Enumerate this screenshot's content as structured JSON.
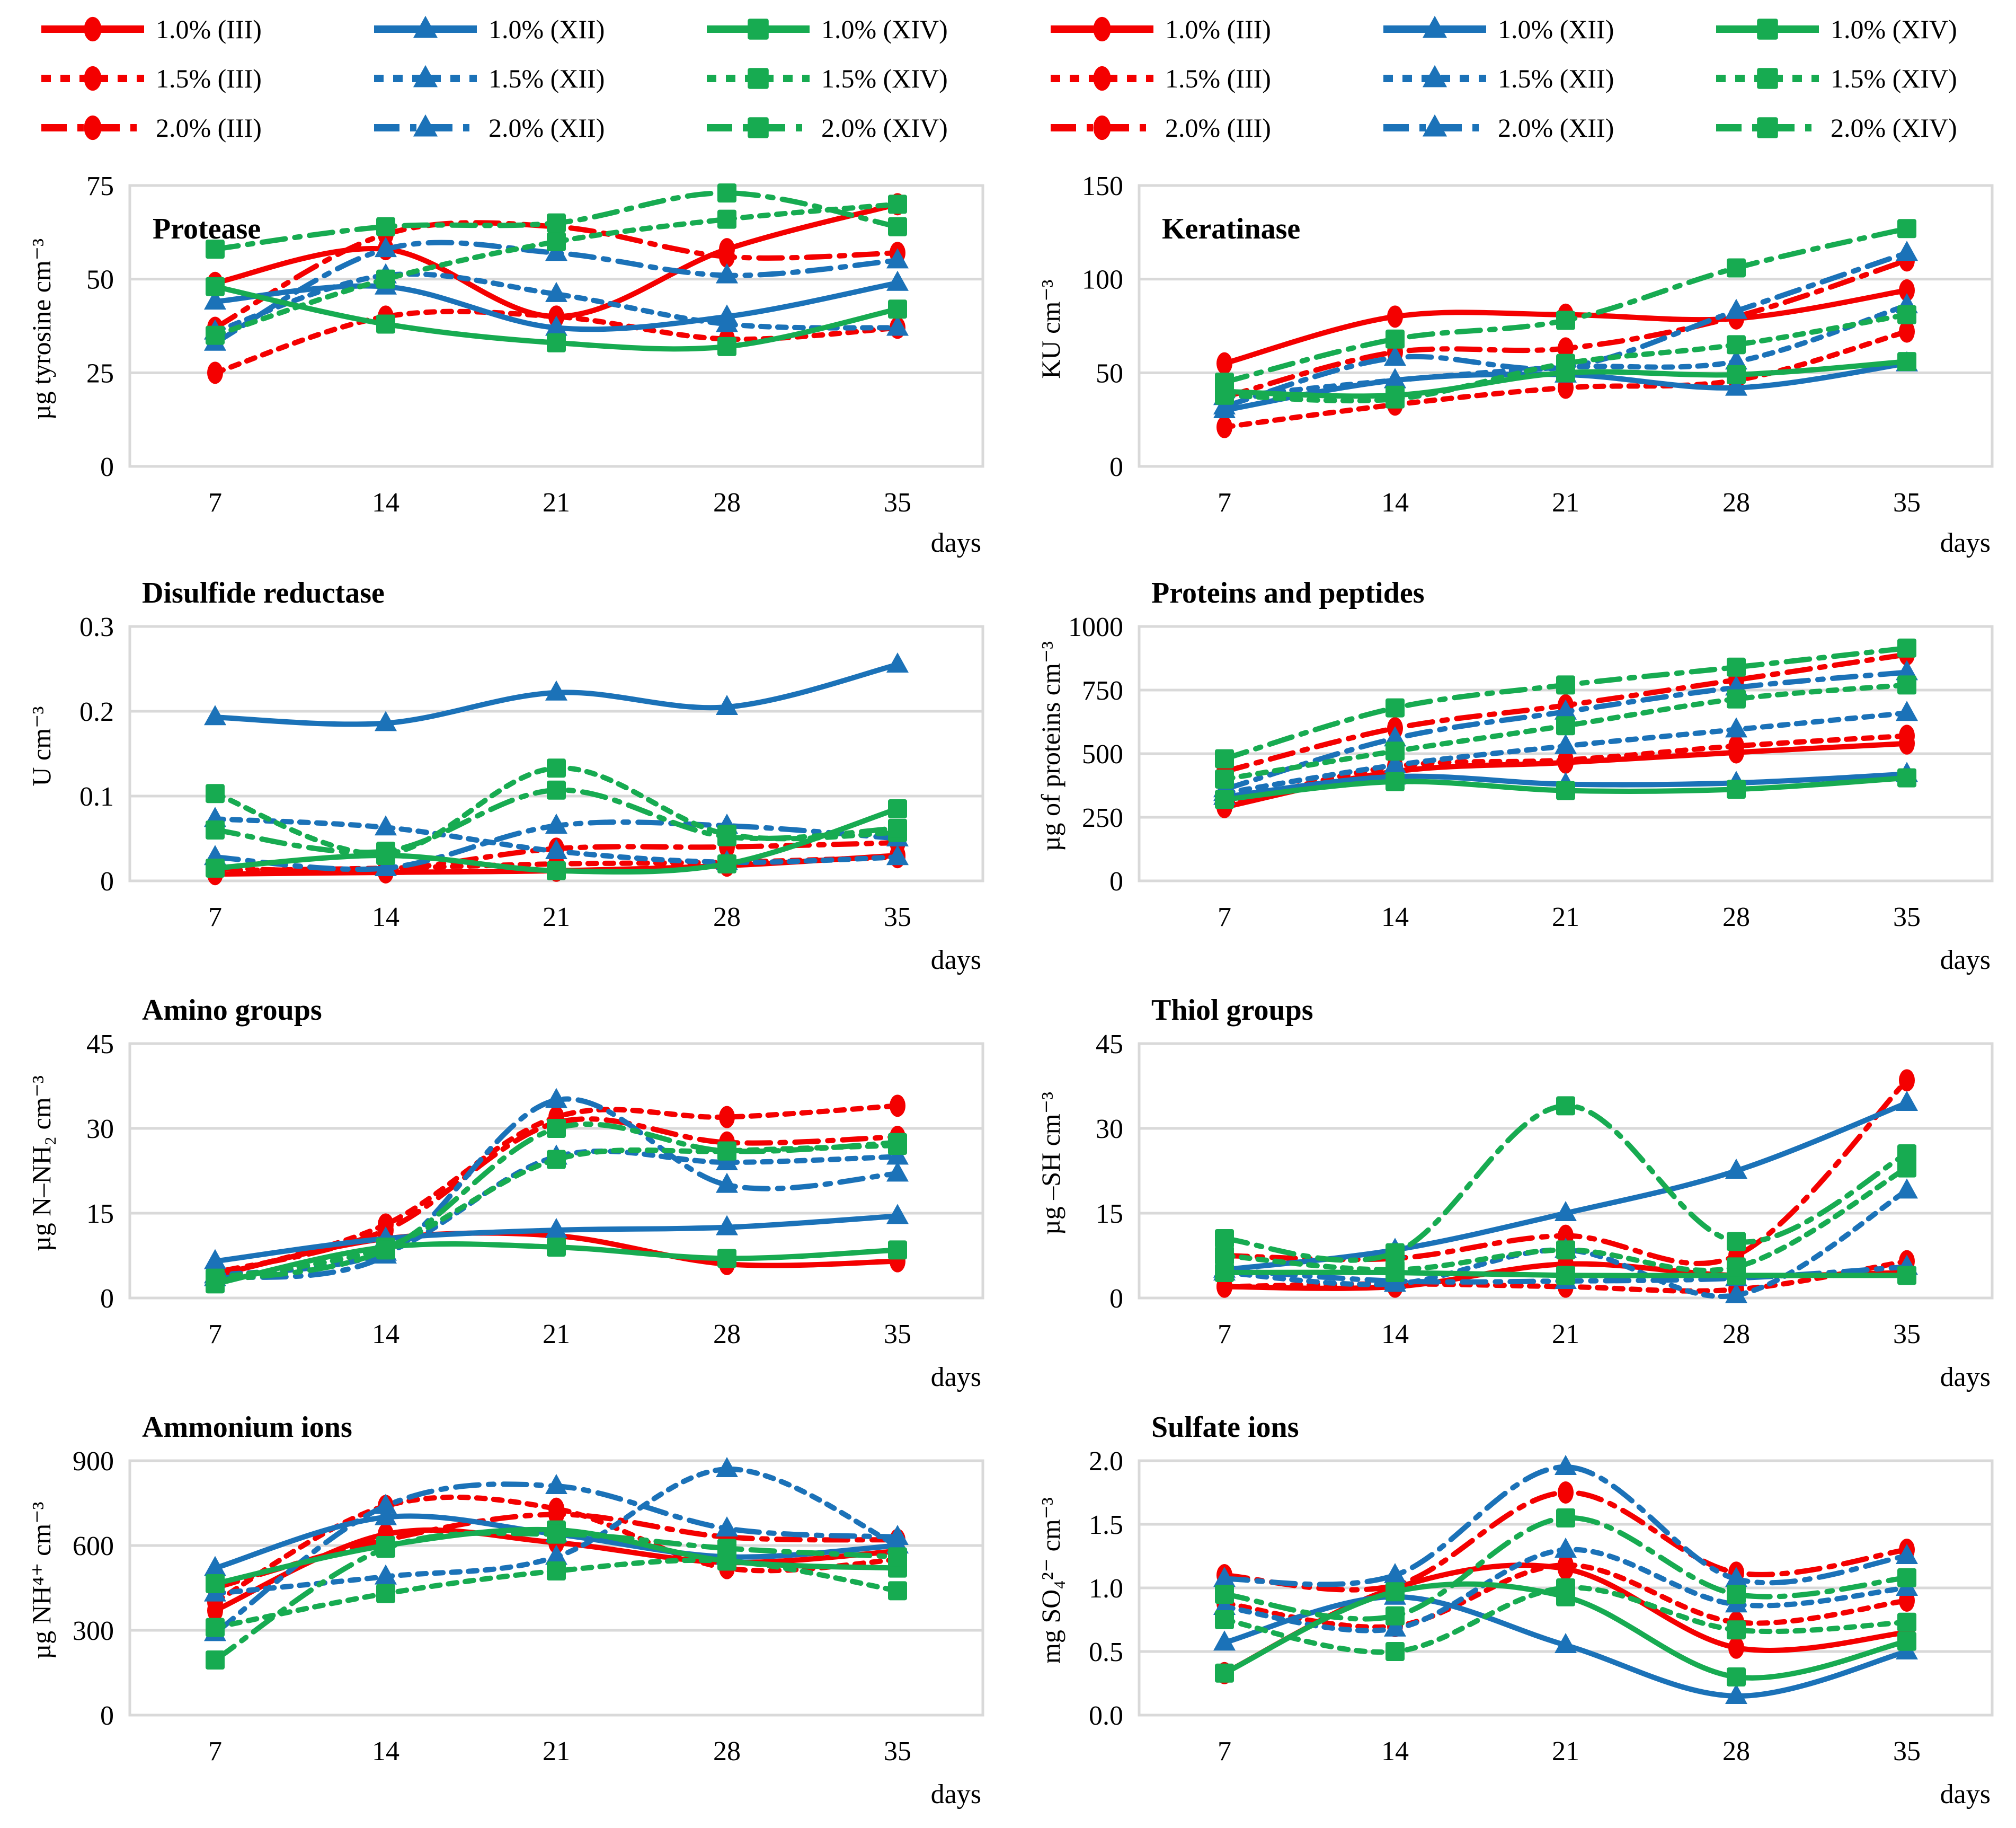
{
  "page": {
    "days_label": "days"
  },
  "colors": {
    "III": "#F40000",
    "XII": "#1B72B8",
    "XIV": "#17AB51",
    "grid": "#D9D9D9",
    "text": "#000000"
  },
  "x_labels": [
    "7",
    "14",
    "21",
    "28",
    "35"
  ],
  "series_defs": [
    {
      "id": "III-1.0",
      "label": "1.0% (III)",
      "strain": "III",
      "marker": "circle",
      "dash": "solid"
    },
    {
      "id": "XII-1.0",
      "label": "1.0% (XII)",
      "strain": "XII",
      "marker": "triangle",
      "dash": "solid"
    },
    {
      "id": "XIV-1.0",
      "label": "1.0% (XIV)",
      "strain": "XIV",
      "marker": "square",
      "dash": "solid"
    },
    {
      "id": "III-1.5",
      "label": "1.5% (III)",
      "strain": "III",
      "marker": "circle",
      "dash": "dashed"
    },
    {
      "id": "XII-1.5",
      "label": "1.5% (XII)",
      "strain": "XII",
      "marker": "triangle",
      "dash": "dashed"
    },
    {
      "id": "XIV-1.5",
      "label": "1.5% (XIV)",
      "strain": "XIV",
      "marker": "square",
      "dash": "dashed"
    },
    {
      "id": "III-2.0",
      "label": "2.0% (III)",
      "strain": "III",
      "marker": "circle",
      "dash": "dashdot"
    },
    {
      "id": "XII-2.0",
      "label": "2.0% (XII)",
      "strain": "XII",
      "marker": "triangle",
      "dash": "dashdot"
    },
    {
      "id": "XIV-2.0",
      "label": "2.0% (XIV)",
      "strain": "XIV",
      "marker": "square",
      "dash": "dashdot"
    }
  ],
  "chart_data": [
    {
      "type": "line",
      "title": "Protease",
      "ylabel": "µg tyrosine cm⁻³",
      "x": [
        7,
        14,
        21,
        28,
        35
      ],
      "xlabel": "days",
      "ylim": [
        0,
        75
      ],
      "yticks": [
        0,
        25,
        50,
        75
      ],
      "ytick_labels": [
        "0",
        "25",
        "50",
        "75"
      ],
      "title_inside": true,
      "grid": true,
      "legend_position": "top",
      "series": [
        {
          "id": "III-1.0",
          "name": "1.0% (III)",
          "values": [
            49,
            58,
            40,
            58,
            70
          ]
        },
        {
          "id": "III-1.5",
          "name": "1.5% (III)",
          "values": [
            25,
            40,
            40,
            34,
            37
          ]
        },
        {
          "id": "III-2.0",
          "name": "2.0% (III)",
          "values": [
            37,
            62,
            64,
            56,
            57
          ]
        },
        {
          "id": "XII-1.0",
          "name": "1.0% (XII)",
          "values": [
            44,
            48,
            37,
            40,
            49
          ]
        },
        {
          "id": "XII-1.5",
          "name": "1.5% (XII)",
          "values": [
            36,
            51,
            46,
            38,
            37
          ]
        },
        {
          "id": "XII-2.0",
          "name": "2.0% (XII)",
          "values": [
            33,
            58,
            57,
            51,
            55
          ]
        },
        {
          "id": "XIV-1.0",
          "name": "1.0% (XIV)",
          "values": [
            48,
            38,
            33,
            32,
            42
          ]
        },
        {
          "id": "XIV-1.5",
          "name": "1.5% (XIV)",
          "values": [
            35,
            50,
            60,
            66,
            70
          ]
        },
        {
          "id": "XIV-2.0",
          "name": "2.0% (XIV)",
          "values": [
            58,
            64,
            65,
            73,
            64
          ]
        }
      ]
    },
    {
      "type": "line",
      "title": "Keratinase",
      "ylabel": "KU cm⁻³",
      "x": [
        7,
        14,
        21,
        28,
        35
      ],
      "xlabel": "days",
      "ylim": [
        0,
        150
      ],
      "yticks": [
        0,
        50,
        100,
        150
      ],
      "ytick_labels": [
        "0",
        "50",
        "100",
        "150"
      ],
      "title_inside": true,
      "grid": true,
      "series": [
        {
          "id": "III-1.0",
          "name": "1.0% (III)",
          "values": [
            55,
            80,
            81,
            79,
            94
          ]
        },
        {
          "id": "III-1.5",
          "name": "1.5% (III)",
          "values": [
            21,
            33,
            42,
            46,
            72
          ]
        },
        {
          "id": "III-2.0",
          "name": "2.0% (III)",
          "values": [
            37,
            61,
            63,
            80,
            110
          ]
        },
        {
          "id": "XII-1.0",
          "name": "1.0% (XII)",
          "values": [
            30,
            46,
            49,
            42,
            55
          ]
        },
        {
          "id": "XII-1.5",
          "name": "1.5% (XII)",
          "values": [
            37,
            46,
            53,
            56,
            86
          ]
        },
        {
          "id": "XII-2.0",
          "name": "2.0% (XII)",
          "values": [
            32,
            58,
            53,
            83,
            114
          ]
        },
        {
          "id": "XIV-1.0",
          "name": "1.0% (XIV)",
          "values": [
            40,
            38,
            50,
            49,
            56
          ]
        },
        {
          "id": "XIV-1.5",
          "name": "1.5% (XIV)",
          "values": [
            38,
            36,
            55,
            65,
            81
          ]
        },
        {
          "id": "XIV-2.0",
          "name": "2.0% (XIV)",
          "values": [
            45,
            68,
            78,
            106,
            127
          ]
        }
      ]
    },
    {
      "type": "line",
      "title": "Disulfide reductase",
      "ylabel": "U cm⁻³",
      "x": [
        7,
        14,
        21,
        28,
        35
      ],
      "xlabel": "days",
      "ylim": [
        0,
        0.3
      ],
      "yticks": [
        0,
        0.1,
        0.2,
        0.3
      ],
      "ytick_labels": [
        "0",
        "0.1",
        "0.2",
        "0.3"
      ],
      "title_inside": false,
      "grid": true,
      "series": [
        {
          "id": "III-1.0",
          "name": "1.0% (III)",
          "values": [
            0.008,
            0.01,
            0.012,
            0.018,
            0.03
          ]
        },
        {
          "id": "III-1.5",
          "name": "1.5% (III)",
          "values": [
            0.012,
            0.015,
            0.02,
            0.022,
            0.028
          ]
        },
        {
          "id": "III-2.0",
          "name": "2.0% (III)",
          "values": [
            0.015,
            0.013,
            0.038,
            0.04,
            0.045
          ]
        },
        {
          "id": "XII-1.0",
          "name": "1.0% (XII)",
          "values": [
            0.193,
            0.186,
            0.222,
            0.205,
            0.255
          ]
        },
        {
          "id": "XII-1.5",
          "name": "1.5% (XII)",
          "values": [
            0.073,
            0.063,
            0.035,
            0.022,
            0.028
          ]
        },
        {
          "id": "XII-2.0",
          "name": "2.0% (XII)",
          "values": [
            0.028,
            0.015,
            0.065,
            0.065,
            0.05
          ]
        },
        {
          "id": "XIV-1.0",
          "name": "1.0% (XIV)",
          "values": [
            0.015,
            0.03,
            0.012,
            0.02,
            0.085
          ]
        },
        {
          "id": "XIV-1.5",
          "name": "1.5% (XIV)",
          "values": [
            0.103,
            0.032,
            0.133,
            0.055,
            0.057
          ]
        },
        {
          "id": "XIV-2.0",
          "name": "2.0% (XIV)",
          "values": [
            0.06,
            0.035,
            0.107,
            0.052,
            0.062
          ]
        }
      ]
    },
    {
      "type": "line",
      "title": "Proteins and peptides",
      "ylabel": "µg of proteins cm⁻³",
      "x": [
        7,
        14,
        21,
        28,
        35
      ],
      "xlabel": "days",
      "ylim": [
        0,
        1000
      ],
      "yticks": [
        0,
        250,
        500,
        750,
        1000
      ],
      "ytick_labels": [
        "0",
        "250",
        "500",
        "750",
        "1000"
      ],
      "title_inside": false,
      "grid": true,
      "series": [
        {
          "id": "III-1.0",
          "name": "1.0% (III)",
          "values": [
            290,
            430,
            465,
            505,
            540
          ]
        },
        {
          "id": "III-1.5",
          "name": "1.5% (III)",
          "values": [
            300,
            450,
            475,
            530,
            570
          ]
        },
        {
          "id": "III-2.0",
          "name": "2.0% (III)",
          "values": [
            430,
            600,
            690,
            790,
            890
          ]
        },
        {
          "id": "XII-1.0",
          "name": "1.0% (XII)",
          "values": [
            330,
            410,
            380,
            385,
            420
          ]
        },
        {
          "id": "XII-1.5",
          "name": "1.5% (XII)",
          "values": [
            345,
            455,
            530,
            595,
            660
          ]
        },
        {
          "id": "XII-2.0",
          "name": "2.0% (XII)",
          "values": [
            360,
            560,
            665,
            760,
            820
          ]
        },
        {
          "id": "XIV-1.0",
          "name": "1.0% (XIV)",
          "values": [
            320,
            390,
            355,
            360,
            405
          ]
        },
        {
          "id": "XIV-1.5",
          "name": "1.5% (XIV)",
          "values": [
            400,
            510,
            610,
            715,
            770
          ]
        },
        {
          "id": "XIV-2.0",
          "name": "2.0% (XIV)",
          "values": [
            480,
            680,
            770,
            840,
            915
          ]
        }
      ]
    },
    {
      "type": "line",
      "title": "Amino groups",
      "ylabel": "µg N–NH₂ cm⁻³",
      "x": [
        7,
        14,
        21,
        28,
        35
      ],
      "xlabel": "days",
      "ylim": [
        0,
        45
      ],
      "yticks": [
        0,
        15,
        30,
        45
      ],
      "ytick_labels": [
        "0",
        "15",
        "30",
        "45"
      ],
      "title_inside": false,
      "grid": true,
      "series": [
        {
          "id": "III-1.0",
          "name": "1.0% (III)",
          "values": [
            4,
            10.5,
            11,
            6,
            6.5
          ]
        },
        {
          "id": "III-1.5",
          "name": "1.5% (III)",
          "values": [
            4,
            13,
            32,
            32,
            34
          ]
        },
        {
          "id": "III-2.0",
          "name": "2.0% (III)",
          "values": [
            4.5,
            12,
            31,
            27.5,
            28.5
          ]
        },
        {
          "id": "XII-1.0",
          "name": "1.0% (XII)",
          "values": [
            6.5,
            10.5,
            12,
            12.5,
            14.5
          ]
        },
        {
          "id": "XII-1.5",
          "name": "1.5% (XII)",
          "values": [
            4,
            8,
            25,
            24,
            25
          ]
        },
        {
          "id": "XII-2.0",
          "name": "2.0% (XII)",
          "values": [
            3.5,
            7.5,
            35,
            20,
            22
          ]
        },
        {
          "id": "XIV-1.0",
          "name": "1.0% (XIV)",
          "values": [
            2.5,
            9,
            9,
            7,
            8.5
          ]
        },
        {
          "id": "XIV-1.5",
          "name": "1.5% (XIV)",
          "values": [
            3.5,
            9,
            24.5,
            26,
            27
          ]
        },
        {
          "id": "XIV-2.0",
          "name": "2.0% (XIV)",
          "values": [
            3,
            8.5,
            30,
            26,
            27.5
          ]
        }
      ]
    },
    {
      "type": "line",
      "title": "Thiol groups",
      "ylabel": "µg –SH cm⁻³",
      "x": [
        7,
        14,
        21,
        28,
        35
      ],
      "xlabel": "days",
      "ylim": [
        0,
        45
      ],
      "yticks": [
        0,
        15,
        30,
        45
      ],
      "ytick_labels": [
        "0",
        "15",
        "30",
        "45"
      ],
      "title_inside": false,
      "grid": true,
      "series": [
        {
          "id": "III-1.0",
          "name": "1.0% (III)",
          "values": [
            2,
            2,
            6,
            4,
            4.5
          ]
        },
        {
          "id": "III-1.5",
          "name": "1.5% (III)",
          "values": [
            2,
            2.5,
            2,
            1.5,
            6.5
          ]
        },
        {
          "id": "III-2.0",
          "name": "2.0% (III)",
          "values": [
            7.5,
            7,
            11,
            7.5,
            38.5
          ]
        },
        {
          "id": "XII-1.0",
          "name": "1.0% (XII)",
          "values": [
            5,
            8.5,
            15,
            22.5,
            34.5
          ]
        },
        {
          "id": "XII-1.5",
          "name": "1.5% (XII)",
          "values": [
            4.5,
            2.5,
            8.5,
            0.5,
            19
          ]
        },
        {
          "id": "XII-2.0",
          "name": "2.0% (XII)",
          "values": [
            5,
            3,
            3,
            3.5,
            5.5
          ]
        },
        {
          "id": "XIV-1.0",
          "name": "1.0% (XIV)",
          "values": [
            4.5,
            4.5,
            4,
            4,
            4
          ]
        },
        {
          "id": "XIV-1.5",
          "name": "1.5% (XIV)",
          "values": [
            7.5,
            5,
            8.5,
            5.5,
            23
          ]
        },
        {
          "id": "XIV-2.0",
          "name": "2.0% (XIV)",
          "values": [
            10.5,
            8,
            34,
            10,
            25.5
          ]
        }
      ]
    },
    {
      "type": "line",
      "title": "Ammonium ions",
      "ylabel": "µg NH⁴⁺ cm⁻³",
      "x": [
        7,
        14,
        21,
        28,
        35
      ],
      "xlabel": "days",
      "ylim": [
        0,
        900
      ],
      "yticks": [
        0,
        300,
        600,
        900
      ],
      "ytick_labels": [
        "0",
        "300",
        "600",
        "900"
      ],
      "title_inside": false,
      "grid": true,
      "series": [
        {
          "id": "III-1.0",
          "name": "1.0% (III)",
          "values": [
            370,
            640,
            610,
            540,
            580
          ]
        },
        {
          "id": "III-1.5",
          "name": "1.5% (III)",
          "values": [
            400,
            740,
            730,
            520,
            550
          ]
        },
        {
          "id": "III-2.0",
          "name": "2.0% (III)",
          "values": [
            450,
            620,
            710,
            630,
            620
          ]
        },
        {
          "id": "XII-1.0",
          "name": "1.0% (XII)",
          "values": [
            520,
            700,
            640,
            560,
            600
          ]
        },
        {
          "id": "XII-1.5",
          "name": "1.5% (XII)",
          "values": [
            430,
            490,
            560,
            870,
            600
          ]
        },
        {
          "id": "XII-2.0",
          "name": "2.0% (XII)",
          "values": [
            290,
            740,
            810,
            660,
            630
          ]
        },
        {
          "id": "XIV-1.0",
          "name": "1.0% (XIV)",
          "values": [
            465,
            600,
            655,
            545,
            520
          ]
        },
        {
          "id": "XIV-1.5",
          "name": "1.5% (XIV)",
          "values": [
            310,
            430,
            510,
            545,
            440
          ]
        },
        {
          "id": "XIV-2.0",
          "name": "2.0% (XIV)",
          "values": [
            195,
            590,
            640,
            590,
            560
          ]
        }
      ]
    },
    {
      "type": "line",
      "title": "Sulfate ions",
      "ylabel": "mg SO₄²⁻ cm⁻³",
      "x": [
        7,
        14,
        21,
        28,
        35
      ],
      "xlabel": "days",
      "ylim": [
        0,
        2
      ],
      "yticks": [
        0,
        0.5,
        1,
        1.5,
        2
      ],
      "ytick_labels": [
        "0.0",
        "0.5",
        "1.0",
        "1.5",
        "2.0"
      ],
      "title_inside": false,
      "grid": true,
      "series": [
        {
          "id": "III-1.0",
          "name": "1.0% (III)",
          "values": [
            0.33,
            1.0,
            1.15,
            0.53,
            0.65
          ]
        },
        {
          "id": "III-1.5",
          "name": "1.5% (III)",
          "values": [
            0.88,
            0.7,
            1.18,
            0.73,
            0.9
          ]
        },
        {
          "id": "III-2.0",
          "name": "2.0% (III)",
          "values": [
            1.1,
            1.02,
            1.75,
            1.12,
            1.3
          ]
        },
        {
          "id": "XII-1.0",
          "name": "1.0% (XII)",
          "values": [
            0.57,
            0.93,
            0.55,
            0.15,
            0.5
          ]
        },
        {
          "id": "XII-1.5",
          "name": "1.5% (XII)",
          "values": [
            0.85,
            0.68,
            1.3,
            0.87,
            1.0
          ]
        },
        {
          "id": "XII-2.0",
          "name": "2.0% (XII)",
          "values": [
            1.07,
            1.1,
            1.95,
            1.07,
            1.25
          ]
        },
        {
          "id": "XIV-1.0",
          "name": "1.0% (XIV)",
          "values": [
            0.33,
            0.97,
            0.93,
            0.3,
            0.58
          ]
        },
        {
          "id": "XIV-1.5",
          "name": "1.5% (XIV)",
          "values": [
            0.75,
            0.5,
            1.0,
            0.67,
            0.73
          ]
        },
        {
          "id": "XIV-2.0",
          "name": "2.0% (XIV)",
          "values": [
            0.95,
            0.78,
            1.55,
            0.95,
            1.08
          ]
        }
      ]
    }
  ]
}
